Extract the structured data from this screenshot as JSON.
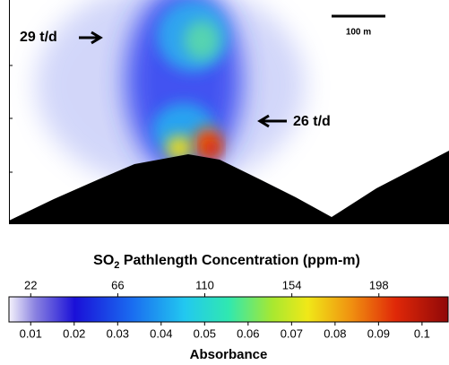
{
  "image": {
    "annotations": [
      "29 t/d",
      "26 t/d"
    ],
    "scale_bar": "100 m"
  },
  "colorbar": {
    "title": {
      "chemical": "SO",
      "subscript": "2",
      "rest": " Pathlength Concentration (ppm-m)"
    },
    "concentration_ticks": [
      22,
      66,
      110,
      154,
      198
    ],
    "concentration_lim": [
      11,
      233
    ],
    "absorbance_ticks": [
      0.01,
      0.02,
      0.03,
      0.04,
      0.05,
      0.06,
      0.07,
      0.08,
      0.09,
      0.1
    ],
    "absorbance_lim": [
      0.005,
      0.106
    ],
    "xlabel": "Absorbance"
  }
}
